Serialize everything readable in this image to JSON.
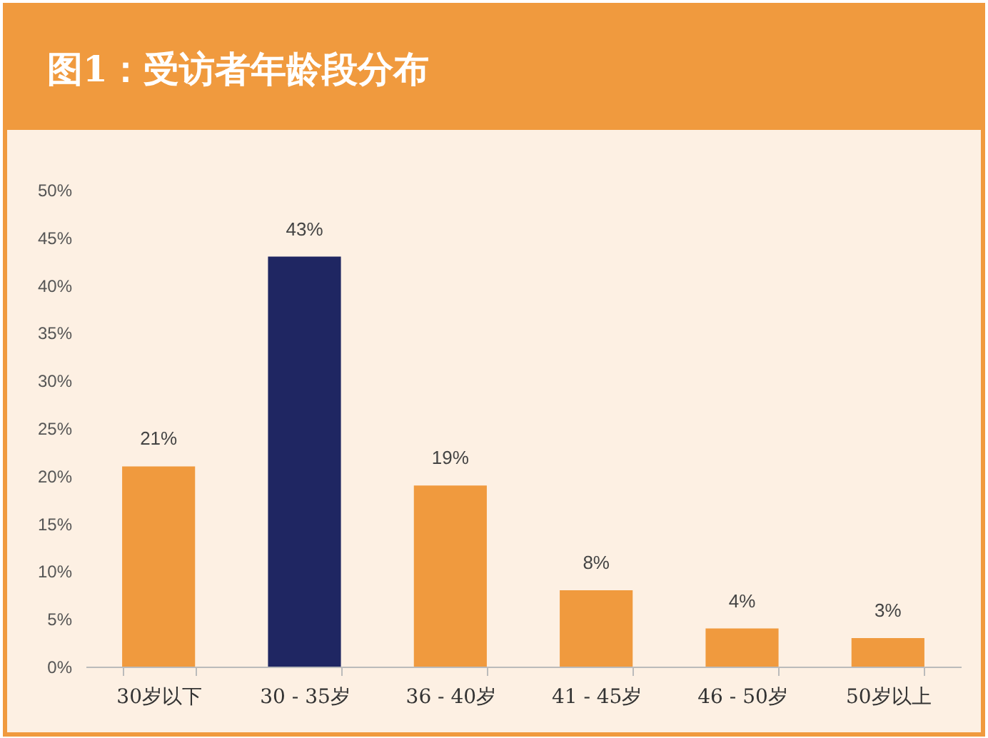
{
  "chart_data": {
    "type": "bar",
    "title": "图1：受访者年龄段分布",
    "categories": [
      "30岁以下",
      "30 - 35岁",
      "36 - 40岁",
      "41 - 45岁",
      "46 - 50岁",
      "50岁以上"
    ],
    "values": [
      21,
      43,
      19,
      8,
      4,
      3
    ],
    "colors": [
      "#f09a3e",
      "#1f2662",
      "#f09a3e",
      "#f09a3e",
      "#f09a3e",
      "#f09a3e"
    ],
    "value_labels": [
      "21%",
      "43%",
      "19%",
      "8%",
      "4%",
      "3%"
    ],
    "ylim": [
      0,
      50
    ],
    "yticks": [
      {
        "value": 0,
        "label": "0%"
      },
      {
        "value": 5,
        "label": "5%"
      },
      {
        "value": 10,
        "label": "10%"
      },
      {
        "value": 15,
        "label": "15%"
      },
      {
        "value": 20,
        "label": "20%"
      },
      {
        "value": 25,
        "label": "25%"
      },
      {
        "value": 30,
        "label": "30%"
      },
      {
        "value": 35,
        "label": "35%"
      },
      {
        "value": 40,
        "label": "40%"
      },
      {
        "value": 45,
        "label": "45%"
      },
      {
        "value": 50,
        "label": "50%"
      }
    ],
    "grid": false
  }
}
